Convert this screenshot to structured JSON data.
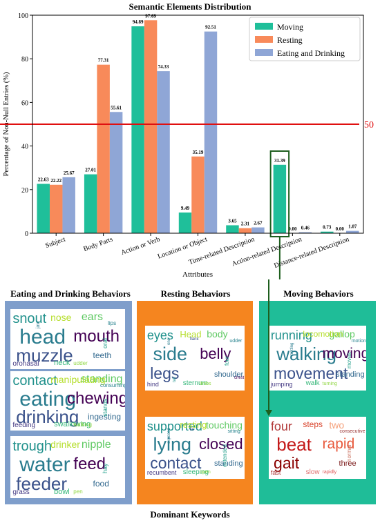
{
  "chart_data": {
    "type": "bar",
    "title": "Semantic Elements Distribution",
    "xlabel": "Attributes",
    "ylabel": "Percentage of Non-Null Entries (%)",
    "ylim": [
      0,
      100
    ],
    "yticks": [
      0,
      20,
      40,
      60,
      80,
      100
    ],
    "legend_position": "top-right",
    "categories": [
      "Subject",
      "Body Parts",
      "Action or Verb",
      "Location or Object",
      "Time-related Description",
      "Action-related Description",
      "Distance-related Description"
    ],
    "series": [
      {
        "name": "Moving",
        "color": "#1fbf9a",
        "values": [
          22.63,
          27.01,
          94.89,
          9.49,
          3.65,
          31.39,
          0.73
        ]
      },
      {
        "name": "Resting",
        "color": "#f88a5a",
        "values": [
          22.22,
          77.31,
          97.69,
          35.19,
          2.31,
          0.0,
          0.0
        ]
      },
      {
        "name": "Eating and Drinking",
        "color": "#8fa6d6",
        "values": [
          25.67,
          55.61,
          74.33,
          92.51,
          2.67,
          0.46,
          1.07
        ]
      }
    ],
    "data_labels": [
      [
        "22.63",
        "27.01",
        "94.89",
        "9.49",
        "3.65",
        "31.39",
        "0.73"
      ],
      [
        "22.22",
        "77.31",
        "97.69",
        "35.19",
        "2.31",
        "0.00",
        "0.00"
      ],
      [
        "25.67",
        "55.61",
        "74.33",
        "92.51",
        "2.67",
        "0.46",
        "1.07"
      ]
    ],
    "reference_line": {
      "value": 50,
      "label": "50",
      "color": "#e01010"
    },
    "highlight_category": "Action-related Description",
    "highlight_color": "#1e5e1e"
  },
  "panels": {
    "eating": {
      "title": "Eating and Drinking Behaviors",
      "color": "#7f9ecb",
      "clouds": [
        [
          "head",
          "muzzle",
          "mouth",
          "snout",
          "ears",
          "nose",
          "teeth",
          "neck",
          "oronasal",
          "oral",
          "udder",
          "lips",
          "jaw"
        ],
        [
          "eating",
          "drinking",
          "chewing",
          "contact",
          "standing",
          "manipulating",
          "ingesting",
          "swallowing",
          "feeding",
          "stands",
          "walking",
          "consuming"
        ],
        [
          "water",
          "feeder",
          "feed",
          "trough",
          "nipple",
          "drinker",
          "food",
          "bowl",
          "grass",
          "hay",
          "pen"
        ]
      ]
    },
    "resting": {
      "title": "Resting Behaviors",
      "color": "#f5851f",
      "clouds": [
        [
          "side",
          "legs",
          "belly",
          "eyes",
          "body",
          "Head",
          "shoulder",
          "sternum",
          "hind",
          "four",
          "limbs",
          "udder",
          "one",
          "flank",
          "chest",
          "tail"
        ],
        [
          "lying",
          "contact",
          "closed",
          "supported",
          "touching",
          "resting",
          "standing",
          "sleeping",
          "recumbent",
          "extended",
          "open",
          "sitting",
          "exposed",
          "lie"
        ]
      ]
    },
    "moving": {
      "title": "Moving Behaviors",
      "color": "#1fbd98",
      "clouds": [
        [
          "walking",
          "movement",
          "moving",
          "running",
          "gallop",
          "locomotion",
          "standing",
          "walk",
          "jumping",
          "moves",
          "turning",
          "motion",
          "trotting"
        ],
        [
          "beat",
          "gait",
          "rapid",
          "four",
          "two",
          "steps",
          "three",
          "slow",
          "fast",
          "normal",
          "rapidly",
          "consecutive"
        ]
      ]
    }
  },
  "footer": "Dominant Keywords"
}
